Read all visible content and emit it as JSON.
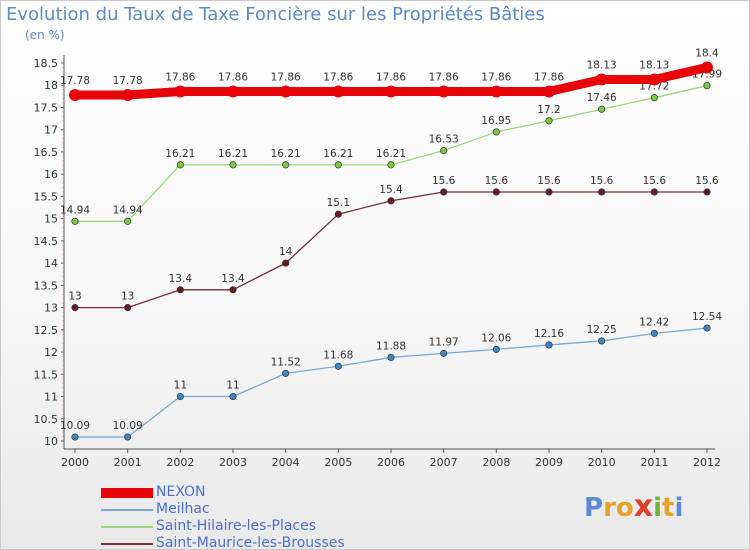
{
  "title": "Evolution du Taux de Taxe Foncière sur les Propriétés Bâties",
  "subtitle": "(en %)",
  "logo": {
    "text": "Proxiti",
    "colors": [
      "#5b8bd6",
      "#e8a125",
      "#e8a125",
      "#e23e2b",
      "#6cb63f",
      "#e8a125",
      "#5b8bd6"
    ]
  },
  "chart_data": {
    "type": "line",
    "x": [
      2000,
      2001,
      2002,
      2003,
      2004,
      2005,
      2006,
      2007,
      2008,
      2009,
      2010,
      2011,
      2012
    ],
    "ylim": [
      10,
      18.5
    ],
    "y_ticks": [
      "10",
      "10.5",
      "11",
      "11.5",
      "12",
      "12.5",
      "13",
      "13.5",
      "14",
      "14.5",
      "15",
      "15.5",
      "16",
      "16.5",
      "17",
      "17.5",
      "18",
      "18.5"
    ],
    "x_ticks": [
      "2000",
      "2001",
      "2002",
      "2003",
      "2004",
      "2005",
      "2006",
      "2007",
      "2008",
      "2009",
      "2010",
      "2011",
      "2012"
    ],
    "grid": false,
    "legend_position": "bottom-left",
    "series": [
      {
        "name": "NEXON",
        "color": "#e8050a",
        "marker_color": "#e8050a",
        "values": [
          17.78,
          17.78,
          17.86,
          17.86,
          17.86,
          17.86,
          17.86,
          17.86,
          17.86,
          17.86,
          18.13,
          18.13,
          18.4
        ],
        "labels": [
          "17.78",
          "17.78",
          "17.86",
          "17.86",
          "17.86",
          "17.86",
          "17.86",
          "17.86",
          "17.86",
          "17.86",
          "18.13",
          "18.13",
          "18.4"
        ]
      },
      {
        "name": "Meilhac",
        "color": "#7aa7d4",
        "marker_color": "#3f86c5",
        "values": [
          10.09,
          10.09,
          11,
          11,
          11.52,
          11.68,
          11.88,
          11.97,
          12.06,
          12.16,
          12.25,
          12.42,
          12.54
        ],
        "labels": [
          "10.09",
          "10.09",
          "11",
          "11",
          "11.52",
          "11.68",
          "11.88",
          "11.97",
          "12.06",
          "12.16",
          "12.25",
          "12.42",
          "12.54"
        ]
      },
      {
        "name": "Saint-Hilaire-les-Places",
        "color": "#9bd67a",
        "marker_color": "#7ac943",
        "values": [
          14.94,
          14.94,
          16.21,
          16.21,
          16.21,
          16.21,
          16.21,
          16.53,
          16.95,
          17.2,
          17.46,
          17.72,
          17.99
        ],
        "labels": [
          "14.94",
          "14.94",
          "16.21",
          "16.21",
          "16.21",
          "16.21",
          "16.21",
          "16.53",
          "16.95",
          "17.2",
          "17.46",
          "17.72",
          "17.99"
        ]
      },
      {
        "name": "Saint-Maurice-les-Brousses",
        "color": "#7a2a35",
        "marker_color": "#6a1a23",
        "values": [
          13,
          13,
          13.4,
          13.4,
          14,
          15.1,
          15.4,
          15.6,
          15.6,
          15.6,
          15.6,
          15.6,
          15.6
        ],
        "labels": [
          "13",
          "13",
          "13.4",
          "13.4",
          "14",
          "15.1",
          "15.4",
          "15.6",
          "15.6",
          "15.6",
          "15.6",
          "15.6",
          "15.6"
        ]
      }
    ]
  }
}
